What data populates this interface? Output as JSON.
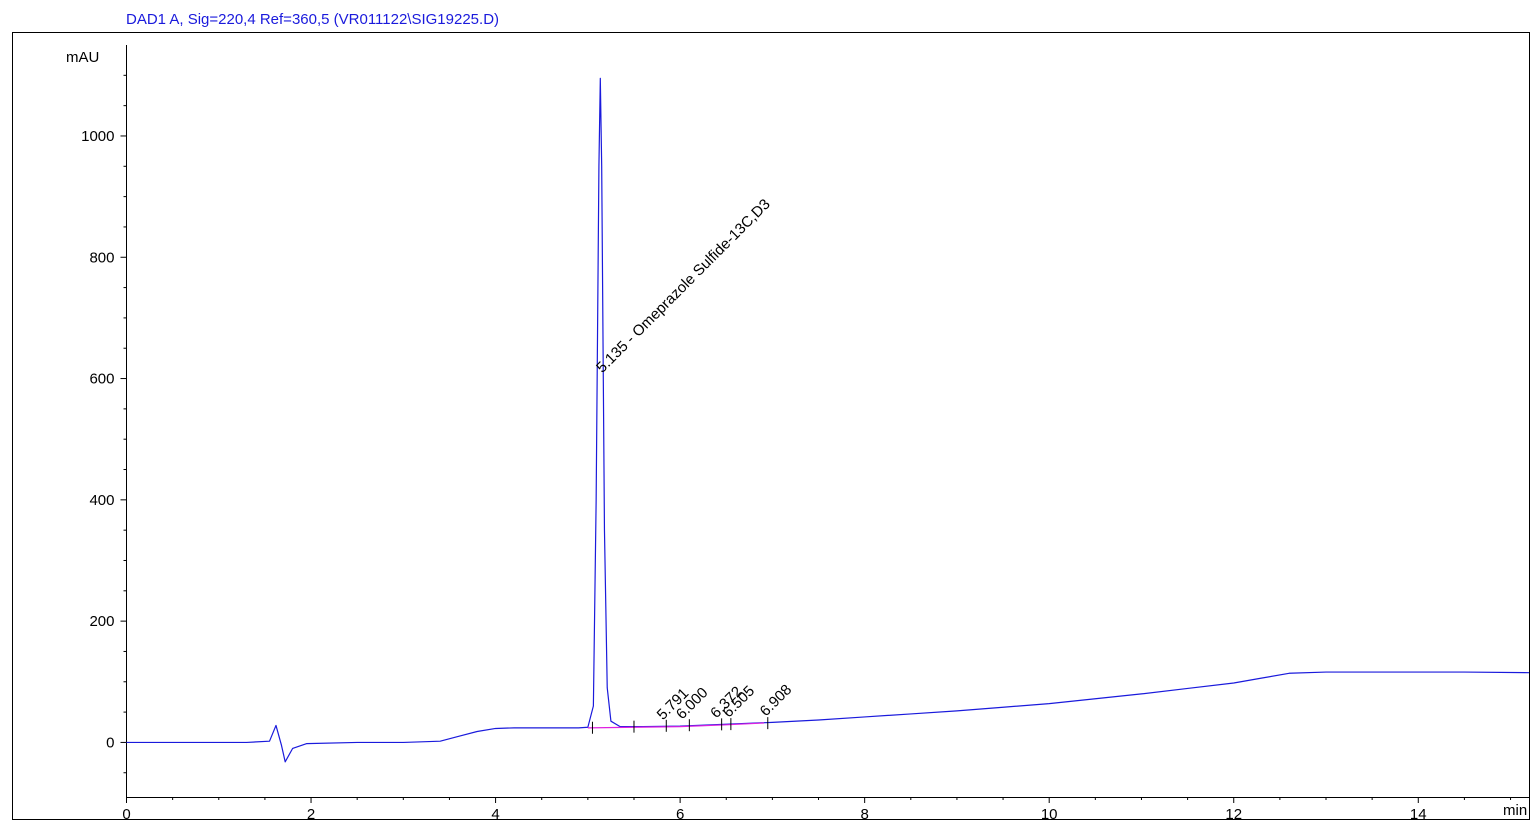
{
  "chart_data": {
    "type": "line",
    "title": "DAD1 A, Sig=220,4 Ref=360,5 (VR011122\\SIG19225.D)",
    "ylabel": "mAU",
    "xlabel": "min",
    "xlim": [
      0,
      15.2
    ],
    "ylim": [
      -90,
      1150
    ],
    "x_ticks": [
      0,
      2,
      4,
      6,
      8,
      10,
      12,
      14
    ],
    "x_tick_labels": [
      "0",
      "2",
      "4",
      "6",
      "8",
      "10",
      "12",
      "14"
    ],
    "y_ticks": [
      0,
      200,
      400,
      600,
      800,
      1000
    ],
    "y_tick_labels": [
      "0",
      "200",
      "400",
      "600",
      "800",
      "1000"
    ],
    "grid": false,
    "series": [
      {
        "color": "#1a1adc",
        "x": [
          0,
          1.0,
          1.3,
          1.55,
          1.62,
          1.68,
          1.72,
          1.8,
          1.95,
          2.5,
          3.0,
          3.4,
          3.6,
          3.8,
          4.0,
          4.2,
          4.5,
          4.9,
          5.0,
          5.06,
          5.09,
          5.12,
          5.135,
          5.15,
          5.18,
          5.21,
          5.25,
          5.35,
          5.6,
          6.0,
          6.5,
          7.0,
          7.5,
          8.0,
          8.5,
          9.0,
          9.5,
          10.0,
          10.5,
          11.0,
          11.5,
          12.0,
          12.3,
          12.6,
          13.0,
          13.5,
          14.0,
          14.5,
          15.2
        ],
        "y": [
          0,
          0,
          0,
          2,
          28,
          -5,
          -32,
          -10,
          -2,
          0,
          0,
          2,
          10,
          18,
          23,
          24,
          24,
          24,
          25,
          60,
          400,
          950,
          1095,
          950,
          350,
          90,
          35,
          26,
          26,
          27,
          30,
          33,
          37,
          42,
          47,
          52,
          58,
          64,
          72,
          80,
          89,
          98,
          106,
          114,
          116,
          116,
          116,
          116,
          115
        ]
      },
      {
        "color": "#e020e0",
        "x": [
          5.0,
          5.5,
          6.0,
          6.5,
          6.908
        ],
        "y": [
          24,
          25,
          26,
          29,
          32
        ]
      }
    ],
    "peaks": [
      {
        "rt": 5.135,
        "label": "5.135 -  Omeprazole Sulfide-13C,D3",
        "height": 1095
      },
      {
        "rt": 5.791,
        "label": "5.791",
        "height": 26
      },
      {
        "rt": 6.0,
        "label": "6.000",
        "height": 27
      },
      {
        "rt": 6.372,
        "label": "6.372",
        "height": 29
      },
      {
        "rt": 6.505,
        "label": "6.505",
        "height": 30
      },
      {
        "rt": 6.908,
        "label": "6.908",
        "height": 32
      }
    ],
    "baseline_marks": [
      5.05,
      5.5,
      5.85,
      6.1,
      6.45,
      6.55,
      6.95
    ]
  }
}
